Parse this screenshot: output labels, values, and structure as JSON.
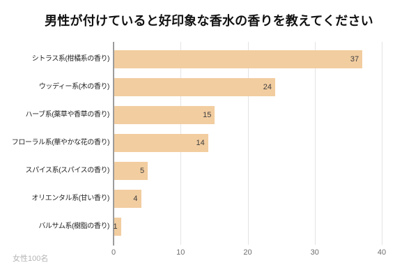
{
  "title": "男性が付けていると好印象な香水の香りを教えてください",
  "footnote": "女性100名",
  "colors": {
    "bar": "#F2CDA0",
    "gridline": "#E3E3E3",
    "axis_line": "#9C9C9C",
    "value_label": "#3D3D3D",
    "category_label": "#222222",
    "tick_label": "#6E6E6E",
    "footnote": "#B4B4B4",
    "title": "#111111",
    "background": "#FFFFFF"
  },
  "chart_data": {
    "type": "bar",
    "orientation": "horizontal",
    "title": "男性が付けていると好印象な香水の香りを教えてください",
    "categories": [
      "シトラス系(柑橘系の香り)",
      "ウッディー系(木の香り)",
      "ハーブ系(薬草や香草の香り)",
      "フローラル系(華やかな花の香り)",
      "スパイス系(スパイスの香り)",
      "オリエンタル系(甘い香り)",
      "バルサム系(樹脂の香り)"
    ],
    "values": [
      37,
      24,
      15,
      14,
      5,
      4,
      1
    ],
    "xlabel": "",
    "ylabel": "",
    "xlim": [
      0,
      40
    ],
    "x_ticks": [
      0,
      10,
      20,
      30,
      40
    ],
    "grid": true,
    "legend": false,
    "value_labels_position": "inside-end",
    "annotation": "女性100名"
  }
}
